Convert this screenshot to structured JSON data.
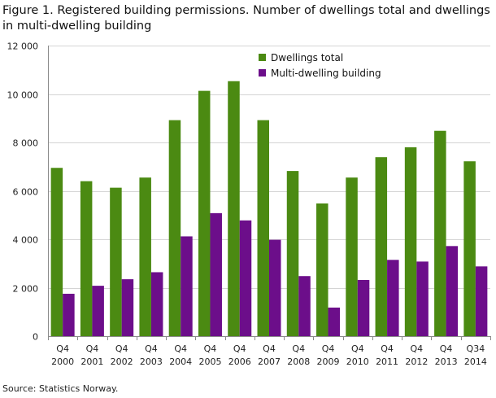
{
  "title": "Figure 1. Registered building permissions. Number of dwellings total and dwellings in multi-dwelling building",
  "source": "Source: Statistics Norway.",
  "colors": {
    "dwellings_total": "#4b8a12",
    "multi_dwelling": "#6c0e8a",
    "grid": "#d4d4d4",
    "axis": "#8a8a8a"
  },
  "chart_data": {
    "type": "bar",
    "categories": [
      [
        "Q4",
        "2000"
      ],
      [
        "Q4",
        "2001"
      ],
      [
        "Q4",
        "2002"
      ],
      [
        "Q4",
        "2003"
      ],
      [
        "Q4",
        "2004"
      ],
      [
        "Q4",
        "2005"
      ],
      [
        "Q4",
        "2006"
      ],
      [
        "Q4",
        "2007"
      ],
      [
        "Q4",
        "2008"
      ],
      [
        "Q4",
        "2009"
      ],
      [
        "Q4",
        "2010"
      ],
      [
        "Q4",
        "2011"
      ],
      [
        "Q4",
        "2012"
      ],
      [
        "Q4",
        "2013"
      ],
      [
        "Q34",
        "2014"
      ]
    ],
    "series": [
      {
        "name": "Dwellings total",
        "values": [
          6950,
          6400,
          6130,
          6550,
          8920,
          10130,
          10530,
          8920,
          6820,
          5480,
          6550,
          7390,
          7800,
          8480,
          7220
        ]
      },
      {
        "name": "Multi-dwelling building",
        "values": [
          1750,
          2080,
          2350,
          2640,
          4120,
          5080,
          4780,
          3980,
          2480,
          1180,
          2320,
          3150,
          3080,
          3720,
          2880
        ]
      }
    ],
    "ylim": [
      0,
      12000
    ],
    "yticks": [
      0,
      2000,
      4000,
      6000,
      8000,
      10000,
      12000
    ],
    "ytick_labels": [
      "0",
      "2 000",
      "4 000",
      "6 000",
      "8 000",
      "10 000",
      "12 000"
    ],
    "grid": true,
    "legend_position": "top-center"
  }
}
